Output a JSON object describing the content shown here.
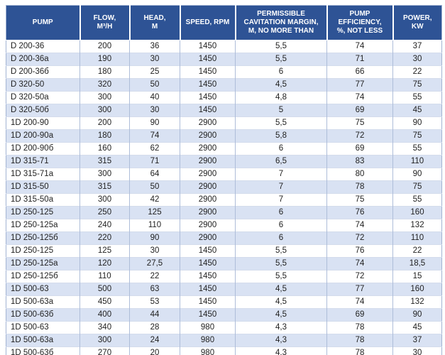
{
  "colors": {
    "header_bg": "#2e5395",
    "header_text": "#ffffff",
    "row_stripe": "#d9e2f3",
    "row_plain": "#ffffff",
    "body_text": "#1f1f1f",
    "grid_line": "#aebdd9"
  },
  "table": {
    "columns": [
      "PUMP",
      "FLOW,\nM³/H",
      "HEAD,\nM",
      "SPEED, RPM",
      "PERMISSIBLE\nCAVITATION MARGIN,\nM, NO MORE THAN",
      "PUMP\nEFFICIENCY,\n%, NOT LESS",
      "POWER,\nKW"
    ],
    "rows": [
      [
        "D 200-36",
        "200",
        "36",
        "1450",
        "5,5",
        "74",
        "37"
      ],
      [
        "D 200-36a",
        "190",
        "30",
        "1450",
        "5,5",
        "71",
        "30"
      ],
      [
        "D 200-36б",
        "180",
        "25",
        "1450",
        "6",
        "66",
        "22"
      ],
      [
        "D 320-50",
        "320",
        "50",
        "1450",
        "4,5",
        "77",
        "75"
      ],
      [
        "D 320-50a",
        "300",
        "40",
        "1450",
        "4,8",
        "74",
        "55"
      ],
      [
        "D 320-50б",
        "300",
        "30",
        "1450",
        "5",
        "69",
        "45"
      ],
      [
        "1D 200-90",
        "200",
        "90",
        "2900",
        "5,5",
        "75",
        "90"
      ],
      [
        "1D 200-90a",
        "180",
        "74",
        "2900",
        "5,8",
        "72",
        "75"
      ],
      [
        "1D 200-90б",
        "160",
        "62",
        "2900",
        "6",
        "69",
        "55"
      ],
      [
        "1D 315-71",
        "315",
        "71",
        "2900",
        "6,5",
        "83",
        "110"
      ],
      [
        "1D 315-71a",
        "300",
        "64",
        "2900",
        "7",
        "80",
        "90"
      ],
      [
        "1D 315-50",
        "315",
        "50",
        "2900",
        "7",
        "78",
        "75"
      ],
      [
        "1D 315-50a",
        "300",
        "42",
        "2900",
        "7",
        "75",
        "55"
      ],
      [
        "1D 250-125",
        "250",
        "125",
        "2900",
        "6",
        "76",
        "160"
      ],
      [
        "1D 250-125a",
        "240",
        "110",
        "2900",
        "6",
        "74",
        "132"
      ],
      [
        "1D 250-125б",
        "220",
        "90",
        "2900",
        "6",
        "72",
        "110"
      ],
      [
        "1D 250-125",
        "125",
        "30",
        "1450",
        "5,5",
        "76",
        "22"
      ],
      [
        "1D 250-125a",
        "120",
        "27,5",
        "1450",
        "5,5",
        "74",
        "18,5"
      ],
      [
        "1D 250-125б",
        "110",
        "22",
        "1450",
        "5,5",
        "72",
        "15"
      ],
      [
        "1D 500-63",
        "500",
        "63",
        "1450",
        "4,5",
        "77",
        "160"
      ],
      [
        "1D 500-63a",
        "450",
        "53",
        "1450",
        "4,5",
        "74",
        "132"
      ],
      [
        "1D 500-63б",
        "400",
        "44",
        "1450",
        "4,5",
        "69",
        "90"
      ],
      [
        "1D 500-63",
        "340",
        "28",
        "980",
        "4,3",
        "78",
        "45"
      ],
      [
        "1D 500-63a",
        "300",
        "24",
        "980",
        "4,3",
        "78",
        "37"
      ],
      [
        "1D 500-63б",
        "270",
        "20",
        "980",
        "4,3",
        "78",
        "30"
      ]
    ]
  }
}
